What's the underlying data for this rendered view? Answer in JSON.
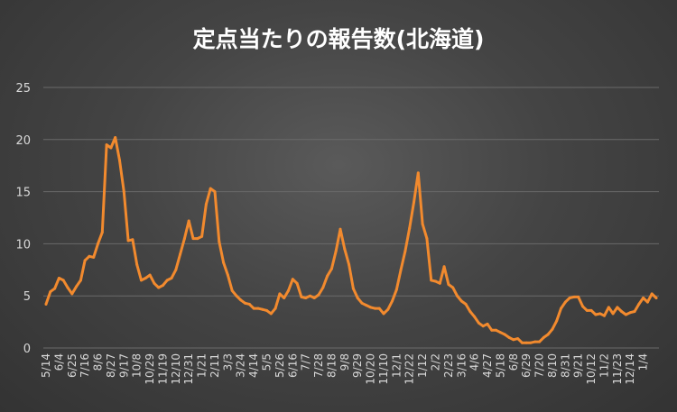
{
  "chart_data": {
    "type": "line",
    "title": "定点当たりの報告数(北海道)",
    "xlabel": "",
    "ylabel": "",
    "ylim": [
      0,
      25
    ],
    "yticks": [
      "0",
      "5",
      "10",
      "15",
      "20",
      "25"
    ],
    "grid": "horizontal",
    "legend": "none",
    "colors": {
      "line": "#f28a2e",
      "grid": "#6a6a6a",
      "text": "#d9d9d9",
      "title": "#ffffff"
    },
    "x_tick_labels": [
      "5/14",
      "6/4",
      "6/25",
      "7/16",
      "8/6",
      "8/27",
      "9/17",
      "10/8",
      "10/29",
      "11/19",
      "12/10",
      "12/31",
      "1/21",
      "2/11",
      "3/3",
      "3/24",
      "4/14",
      "5/5",
      "5/26",
      "6/16",
      "7/7",
      "7/28",
      "8/18",
      "9/8",
      "9/29",
      "10/20",
      "11/10",
      "12/1",
      "12/22",
      "1/12",
      "2/2",
      "2/23",
      "3/16",
      "4/6",
      "4/27",
      "5/18",
      "6/8",
      "6/29",
      "7/20",
      "8/10",
      "8/31",
      "9/21",
      "10/12",
      "11/2",
      "11/23",
      "12/14",
      "1/4"
    ],
    "values": [
      4.2,
      5.4,
      5.7,
      6.7,
      6.5,
      5.8,
      5.2,
      5.9,
      6.5,
      8.4,
      8.8,
      8.7,
      10.0,
      11.1,
      19.5,
      19.2,
      20.2,
      18.0,
      15.0,
      10.3,
      10.4,
      8.0,
      6.5,
      6.7,
      7.0,
      6.2,
      5.8,
      6.0,
      6.5,
      6.7,
      7.5,
      9.0,
      10.5,
      12.2,
      10.5,
      10.5,
      10.7,
      13.8,
      15.3,
      15.0,
      10.2,
      8.2,
      7.0,
      5.5,
      5.0,
      4.6,
      4.3,
      4.2,
      3.8,
      3.8,
      3.7,
      3.6,
      3.3,
      3.8,
      5.2,
      4.8,
      5.5,
      6.6,
      6.2,
      4.9,
      4.8,
      5.0,
      4.8,
      5.1,
      5.8,
      6.9,
      7.6,
      9.3,
      11.4,
      9.5,
      8.0,
      5.7,
      4.8,
      4.3,
      4.1,
      3.9,
      3.8,
      3.8,
      3.3,
      3.7,
      4.5,
      5.6,
      7.5,
      9.3,
      11.5,
      14.0,
      16.8,
      11.9,
      10.5,
      6.5,
      6.4,
      6.2,
      7.8,
      6.1,
      5.8,
      5.0,
      4.5,
      4.2,
      3.5,
      3.0,
      2.4,
      2.1,
      2.3,
      1.7,
      1.7,
      1.5,
      1.3,
      1.0,
      0.8,
      0.9,
      0.5,
      0.5,
      0.5,
      0.6,
      0.6,
      1.0,
      1.3,
      1.8,
      2.6,
      3.8,
      4.4,
      4.8,
      4.9,
      4.9,
      4.0,
      3.6,
      3.6,
      3.2,
      3.3,
      3.1,
      3.9,
      3.3,
      3.9,
      3.5,
      3.2,
      3.4,
      3.5,
      4.2,
      4.8,
      4.4,
      5.2,
      4.8
    ]
  }
}
